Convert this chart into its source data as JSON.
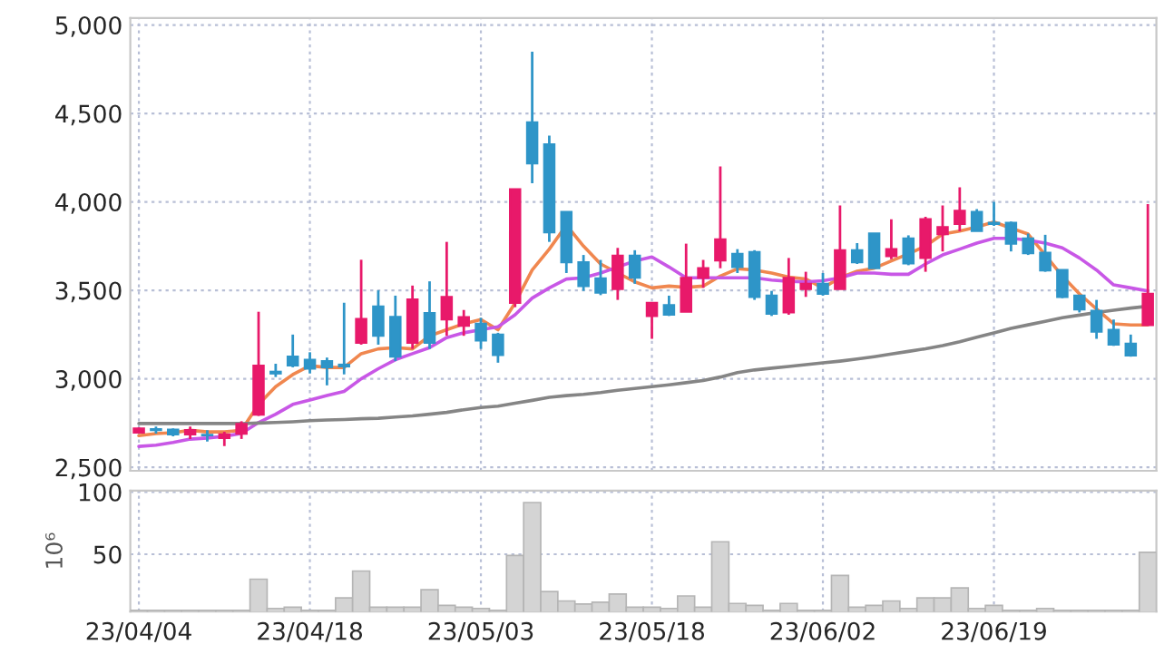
{
  "chart_data": [
    {
      "type": "candlestick",
      "categories": [
        null,
        null,
        null,
        null,
        null,
        null,
        null,
        null,
        null,
        null,
        null,
        null,
        null,
        null,
        null,
        null,
        null,
        null,
        null,
        null,
        null,
        null,
        null,
        null,
        null,
        null,
        null,
        null,
        null,
        null,
        null,
        null,
        null,
        null,
        null,
        null,
        null,
        null,
        null,
        null,
        null,
        null,
        null,
        null,
        null,
        null,
        null,
        null,
        null,
        null,
        null,
        null,
        null,
        null,
        null,
        null,
        null,
        null,
        null,
        null
      ],
      "ohlc": [
        [
          2696,
          2725,
          2690,
          2719
        ],
        [
          2715,
          2730,
          2690,
          2710
        ],
        [
          2713,
          2720,
          2675,
          2686
        ],
        [
          2686,
          2730,
          2660,
          2710
        ],
        [
          2683,
          2710,
          2645,
          2680
        ],
        [
          2665,
          2700,
          2620,
          2686
        ],
        [
          2690,
          2760,
          2660,
          2745
        ],
        [
          2797,
          3379,
          2790,
          3074
        ],
        [
          3040,
          3085,
          3010,
          3030
        ],
        [
          3125,
          3250,
          3065,
          3075
        ],
        [
          3108,
          3150,
          3030,
          3057
        ],
        [
          3100,
          3120,
          2963,
          3065
        ],
        [
          3080,
          3430,
          3025,
          3070
        ],
        [
          3203,
          3673,
          3193,
          3338
        ],
        [
          3409,
          3500,
          3193,
          3243
        ],
        [
          3350,
          3470,
          3100,
          3125
        ],
        [
          3203,
          3527,
          3169,
          3449
        ],
        [
          3372,
          3551,
          3169,
          3203
        ],
        [
          3335,
          3774,
          3243,
          3463
        ],
        [
          3300,
          3389,
          3243,
          3348
        ],
        [
          3311,
          3345,
          3169,
          3216
        ],
        [
          3250,
          3260,
          3091,
          3135
        ],
        [
          3429,
          4071,
          3405,
          4071
        ],
        [
          4450,
          4849,
          4105,
          4217
        ],
        [
          4325,
          4375,
          3774,
          3828
        ],
        [
          3943,
          3943,
          3598,
          3659
        ],
        [
          3659,
          3700,
          3497,
          3524
        ],
        [
          3568,
          3672,
          3473,
          3487
        ],
        [
          3507,
          3740,
          3446,
          3696
        ],
        [
          3696,
          3727,
          3537,
          3571
        ],
        [
          3355,
          3429,
          3226,
          3429
        ],
        [
          3416,
          3470,
          3355,
          3362
        ],
        [
          3379,
          3764,
          3379,
          3571
        ],
        [
          3571,
          3672,
          3514,
          3625
        ],
        [
          3669,
          4200,
          3625,
          3788
        ],
        [
          3706,
          3733,
          3598,
          3632
        ],
        [
          3717,
          3727,
          3446,
          3463
        ],
        [
          3470,
          3497,
          3355,
          3368
        ],
        [
          3375,
          3683,
          3362,
          3571
        ],
        [
          3507,
          3605,
          3463,
          3537
        ],
        [
          3537,
          3598,
          3470,
          3480
        ],
        [
          3507,
          3980,
          3507,
          3727
        ],
        [
          3727,
          3767,
          3649,
          3659
        ],
        [
          3821,
          3821,
          3625,
          3625
        ],
        [
          3693,
          3902,
          3676,
          3733
        ],
        [
          3794,
          3811,
          3642,
          3652
        ],
        [
          3683,
          3916,
          3605,
          3902
        ],
        [
          3818,
          3980,
          3720,
          3858
        ],
        [
          3875,
          4082,
          3834,
          3950
        ],
        [
          3943,
          3960,
          3835,
          3835
        ],
        [
          3882,
          4000,
          3865,
          3875
        ],
        [
          3882,
          3889,
          3720,
          3764
        ],
        [
          3794,
          3821,
          3700,
          3710
        ],
        [
          3713,
          3814,
          3605,
          3612
        ],
        [
          3615,
          3615,
          3456,
          3463
        ],
        [
          3470,
          3470,
          3375,
          3392
        ],
        [
          3385,
          3446,
          3226,
          3267
        ],
        [
          3277,
          3335,
          3186,
          3193
        ],
        [
          3199,
          3250,
          3125,
          3132
        ],
        [
          3304,
          3987,
          3304,
          3480
        ]
      ],
      "colors": [
        "#e8196a",
        "#2e95c8",
        "#2e95c8",
        "#e8196a",
        "#2e95c8",
        "#e8196a",
        "#e8196a",
        "#e8196a",
        "#2e95c8",
        "#2e95c8",
        "#2e95c8",
        "#2e95c8",
        "#2e95c8",
        "#e8196a",
        "#2e95c8",
        "#2e95c8",
        "#e8196a",
        "#2e95c8",
        "#e8196a",
        "#e8196a",
        "#2e95c8",
        "#2e95c8",
        "#e8196a",
        "#2e95c8",
        "#2e95c8",
        "#2e95c8",
        "#2e95c8",
        "#2e95c8",
        "#e8196a",
        "#2e95c8",
        "#e8196a",
        "#2e95c8",
        "#e8196a",
        "#e8196a",
        "#e8196a",
        "#2e95c8",
        "#2e95c8",
        "#2e95c8",
        "#e8196a",
        "#e8196a",
        "#2e95c8",
        "#e8196a",
        "#2e95c8",
        "#2e95c8",
        "#e8196a",
        "#2e95c8",
        "#e8196a",
        "#e8196a",
        "#e8196a",
        "#2e95c8",
        "#2e95c8",
        "#2e95c8",
        "#2e95c8",
        "#2e95c8",
        "#2e95c8",
        "#2e95c8",
        "#2e95c8",
        "#2e95c8",
        "#2e95c8",
        "#e8196a"
      ],
      "series": [
        {
          "type": "line",
          "color": "#f0874f",
          "values": [
            2679,
            2690,
            2695,
            2709,
            2700,
            2700,
            2709,
            2855,
            2956,
            3024,
            3074,
            3064,
            3064,
            3142,
            3169,
            3176,
            3169,
            3243,
            3277,
            3311,
            3335,
            3277,
            3429,
            3615,
            3733,
            3869,
            3750,
            3649,
            3598,
            3548,
            3514,
            3524,
            3517,
            3524,
            3581,
            3622,
            3615,
            3598,
            3575,
            3564,
            3514,
            3571,
            3608,
            3625,
            3666,
            3706,
            3750,
            3818,
            3835,
            3858,
            3886,
            3852,
            3818,
            3700,
            3581,
            3480,
            3395,
            3311,
            3304,
            3304
          ]
        },
        {
          "type": "line",
          "color": "#c857e6",
          "values": [
            2618,
            2625,
            2640,
            2659,
            2665,
            2675,
            2692,
            2753,
            2800,
            2855,
            2880,
            2905,
            2929,
            3000,
            3057,
            3108,
            3142,
            3176,
            3233,
            3260,
            3277,
            3294,
            3362,
            3456,
            3514,
            3564,
            3571,
            3598,
            3632,
            3666,
            3689,
            3632,
            3571,
            3571,
            3571,
            3571,
            3571,
            3558,
            3551,
            3548,
            3554,
            3571,
            3598,
            3598,
            3591,
            3591,
            3649,
            3700,
            3733,
            3767,
            3794,
            3794,
            3784,
            3767,
            3740,
            3683,
            3615,
            3531,
            3514,
            3497
          ]
        },
        {
          "type": "line",
          "color": "#858585",
          "values": [
            2747,
            2747,
            2747,
            2747,
            2747,
            2747,
            2747,
            2750,
            2753,
            2757,
            2763,
            2767,
            2770,
            2774,
            2777,
            2784,
            2790,
            2800,
            2810,
            2825,
            2838,
            2845,
            2862,
            2878,
            2895,
            2905,
            2912,
            2922,
            2935,
            2945,
            2956,
            2966,
            2978,
            2990,
            3010,
            3035,
            3050,
            3060,
            3070,
            3080,
            3090,
            3100,
            3112,
            3125,
            3140,
            3155,
            3170,
            3188,
            3210,
            3235,
            3260,
            3285,
            3305,
            3325,
            3345,
            3360,
            3375,
            3388,
            3400,
            3410
          ]
        }
      ],
      "ylim": [
        2480,
        5040
      ],
      "yticks": [
        {
          "value": 2500,
          "label": "2,500"
        },
        {
          "value": 3000,
          "label": "3,000"
        },
        {
          "value": 3500,
          "label": "3,500"
        },
        {
          "value": 4000,
          "label": "4,000"
        },
        {
          "value": 4500,
          "label": "4,500"
        },
        {
          "value": 5000,
          "label": "5,000"
        }
      ],
      "grid": true,
      "tick_labels": "y"
    },
    {
      "type": "bar",
      "categories": [
        "23/04/04",
        null,
        null,
        null,
        null,
        null,
        null,
        null,
        null,
        null,
        "23/04/18",
        null,
        null,
        null,
        null,
        null,
        null,
        null,
        null,
        null,
        "23/05/03",
        null,
        null,
        null,
        null,
        null,
        null,
        null,
        null,
        null,
        "23/05/18",
        null,
        null,
        null,
        null,
        null,
        null,
        null,
        null,
        null,
        "23/06/02",
        null,
        null,
        null,
        null,
        null,
        null,
        null,
        null,
        null,
        "23/06/19",
        null,
        null,
        null,
        null,
        null,
        null,
        null,
        null,
        null
      ],
      "values": [
        5,
        5,
        5,
        5,
        5,
        5,
        5,
        30,
        6.5,
        7.5,
        5,
        5,
        15,
        36.5,
        7.5,
        7.5,
        7.5,
        21.5,
        9,
        7.5,
        6.5,
        5,
        49,
        91.5,
        20,
        12.5,
        10,
        11.5,
        18,
        7.5,
        7.5,
        6.5,
        16.5,
        7.5,
        60,
        10.5,
        9,
        5,
        10.5,
        5,
        5,
        33,
        7.5,
        9,
        12.5,
        6.5,
        15,
        15,
        23,
        6.5,
        9,
        5,
        5,
        6.5,
        5,
        5,
        5,
        5,
        5,
        51.5
      ],
      "color": "#d4d4d4",
      "ylabel": "10⁶",
      "ylim": [
        4,
        101
      ],
      "yticks": [
        50,
        100
      ],
      "grid": true
    }
  ]
}
